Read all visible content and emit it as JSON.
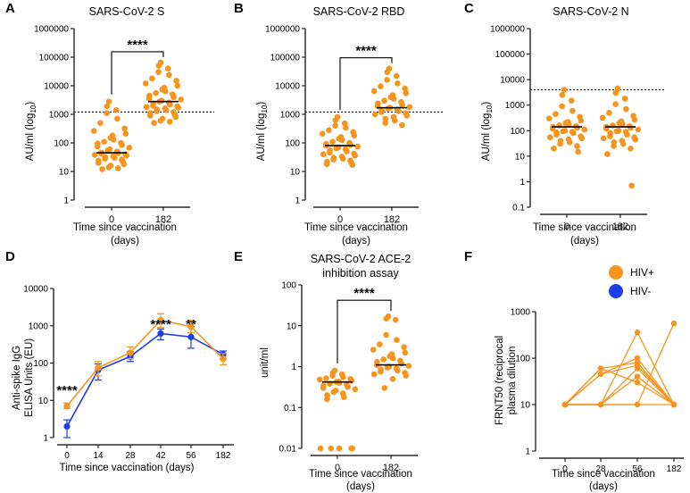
{
  "colors": {
    "hiv_pos": "#F7941D",
    "hiv_neg": "#1E3FE6",
    "axis": "#000000"
  },
  "chart_data": [
    {
      "panel": "A",
      "type": "scatter",
      "title": "SARS-CoV-2 S",
      "ylabel": "AU/ml (log10)",
      "xlabel": "Time since vaccination",
      "xlabel2": "(days)",
      "yscale": "log",
      "ylim": [
        1,
        1000000
      ],
      "yticks": [
        "1",
        "10",
        "100",
        "1000",
        "10000",
        "100000",
        "1000000"
      ],
      "categories": [
        "0",
        "182"
      ],
      "medians": [
        45,
        2800
      ],
      "threshold": 1200,
      "significance": "****",
      "series": [
        {
          "values": [
            2800,
            1900,
            1400,
            1100,
            700,
            500,
            320,
            260,
            210,
            180,
            150,
            130,
            110,
            100,
            95,
            85,
            75,
            68,
            60,
            55,
            50,
            46,
            44,
            42,
            40,
            38,
            36,
            34,
            32,
            30,
            28,
            26,
            24,
            22,
            20,
            18,
            16,
            14,
            13,
            12
          ]
        },
        {
          "values": [
            65000,
            50000,
            40000,
            30000,
            24000,
            18000,
            15000,
            12000,
            10000,
            8500,
            7500,
            6500,
            5600,
            5000,
            4500,
            4000,
            3600,
            3300,
            3000,
            2800,
            2600,
            2400,
            2200,
            2000,
            1900,
            1800,
            1700,
            1600,
            1500,
            1400,
            1300,
            1200,
            1100,
            1000,
            900,
            800,
            700,
            600,
            550,
            500
          ]
        }
      ]
    },
    {
      "panel": "B",
      "type": "scatter",
      "title": "SARS-CoV-2 RBD",
      "ylabel": "AU/ml (log10)",
      "xlabel": "Time since vaccination",
      "xlabel2": "(days)",
      "yscale": "log",
      "ylim": [
        1,
        1000000
      ],
      "yticks": [
        "1",
        "10",
        "100",
        "1000",
        "10000",
        "100000",
        "1000000"
      ],
      "categories": [
        "0",
        "182"
      ],
      "medians": [
        80,
        1700
      ],
      "threshold": 1200,
      "significance": "****",
      "series": [
        {
          "values": [
            800,
            620,
            480,
            400,
            340,
            280,
            240,
            210,
            180,
            160,
            140,
            125,
            110,
            100,
            92,
            85,
            80,
            75,
            70,
            65,
            60,
            55,
            50,
            46,
            42,
            40,
            36,
            33,
            30,
            28,
            26,
            24,
            22,
            20,
            18,
            17
          ]
        },
        {
          "values": [
            40000,
            30000,
            22000,
            16000,
            12000,
            9500,
            8000,
            6500,
            5500,
            4700,
            4000,
            3500,
            3000,
            2700,
            2400,
            2100,
            1900,
            1800,
            1700,
            1600,
            1500,
            1400,
            1300,
            1200,
            1100,
            1000,
            900,
            800,
            700,
            600,
            500,
            420
          ]
        }
      ]
    },
    {
      "panel": "C",
      "type": "scatter",
      "title": "SARS-CoV-2 N",
      "ylabel": "AU/ml (log10)",
      "xlabel": "Time since vaccination",
      "xlabel2": "(days)",
      "yscale": "log",
      "ylim": [
        0.1,
        1000000
      ],
      "yticks": [
        "0.1",
        "1",
        "10",
        "100",
        "1000",
        "10000",
        "100000",
        "1000000"
      ],
      "categories": [
        "0",
        "182"
      ],
      "medians": [
        140,
        140
      ],
      "threshold": 4000,
      "series": [
        {
          "values": [
            4000,
            2500,
            1500,
            900,
            600,
            450,
            350,
            300,
            250,
            220,
            200,
            180,
            160,
            150,
            140,
            130,
            120,
            110,
            100,
            95,
            90,
            85,
            80,
            70,
            60,
            55,
            50,
            45,
            40,
            35,
            30,
            25,
            20,
            15
          ]
        },
        {
          "values": [
            4500,
            3000,
            1800,
            1100,
            700,
            500,
            380,
            320,
            270,
            230,
            200,
            180,
            160,
            150,
            140,
            130,
            120,
            110,
            100,
            95,
            90,
            80,
            70,
            60,
            55,
            50,
            45,
            40,
            35,
            30,
            25,
            20,
            12,
            0.7
          ]
        }
      ]
    },
    {
      "panel": "D",
      "type": "line",
      "ylabel": "Anti-spike IgG",
      "ylabel2": "ELISA Units (EU)",
      "xlabel": "Time since vaccination (days)",
      "yscale": "log",
      "ylim": [
        1,
        10000
      ],
      "yticks": [
        "1",
        "10",
        "100",
        "1000",
        "10000"
      ],
      "x": [
        "0",
        "14",
        "28",
        "42",
        "56",
        "182"
      ],
      "series": [
        {
          "name": "HIV+",
          "values": [
            7,
            75,
            190,
            1400,
            950,
            130
          ],
          "lower": [
            6,
            45,
            130,
            900,
            650,
            90
          ],
          "upper": [
            8.5,
            110,
            270,
            2100,
            1400,
            180
          ]
        },
        {
          "name": "HIV-",
          "values": [
            2,
            65,
            150,
            620,
            500,
            170
          ],
          "lower": [
            1,
            35,
            110,
            420,
            250,
            130
          ],
          "upper": [
            3,
            95,
            200,
            820,
            950,
            210
          ]
        }
      ],
      "significance": [
        {
          "x": "0",
          "label": "****"
        },
        {
          "x": "42",
          "label": "****"
        },
        {
          "x": "56",
          "label": "**"
        }
      ]
    },
    {
      "panel": "E",
      "type": "scatter",
      "title": "SARS-CoV-2 ACE-2",
      "title2": "inhibition assay",
      "ylabel": "unit/ml",
      "xlabel": "Time since vaccination",
      "xlabel2": "(days)",
      "yscale": "log",
      "ylim": [
        0.01,
        100
      ],
      "yticks": [
        "0.01",
        "0.1",
        "1",
        "10",
        "100"
      ],
      "categories": [
        "0",
        "182"
      ],
      "medians": [
        0.42,
        1.1
      ],
      "significance": "****",
      "series": [
        {
          "values": [
            0.8,
            0.7,
            0.65,
            0.6,
            0.55,
            0.52,
            0.5,
            0.48,
            0.45,
            0.43,
            0.42,
            0.4,
            0.38,
            0.36,
            0.34,
            0.32,
            0.3,
            0.28,
            0.26,
            0.24,
            0.22,
            0.2,
            0.18,
            0.16,
            0.01,
            0.01,
            0.01,
            0.01,
            0.01
          ]
        },
        {
          "values": [
            17,
            15,
            14,
            6,
            4.5,
            3.5,
            3,
            2.6,
            2.2,
            2,
            1.8,
            1.6,
            1.5,
            1.4,
            1.3,
            1.2,
            1.1,
            1.05,
            1,
            0.95,
            0.9,
            0.85,
            0.8,
            0.75,
            0.7,
            0.65,
            0.6,
            0.5,
            0.3
          ]
        }
      ]
    },
    {
      "panel": "F",
      "type": "line",
      "ylabel": "FRNT50 (reciprocal",
      "ylabel2": "plasma dilution",
      "xlabel": "Time since vaccination",
      "xlabel2": "(days)",
      "yscale": "log",
      "ylim": [
        1,
        1000
      ],
      "yticks": [
        "1",
        "10",
        "100",
        "1000"
      ],
      "x": [
        "0",
        "28",
        "56",
        "182"
      ],
      "series": [
        {
          "values": [
            10,
            60,
            80,
            10
          ]
        },
        {
          "values": [
            10,
            45,
            100,
            10
          ]
        },
        {
          "values": [
            10,
            10,
            60,
            10
          ]
        },
        {
          "values": [
            10,
            10,
            40,
            10
          ]
        },
        {
          "values": [
            10,
            10,
            360,
            10
          ]
        },
        {
          "values": [
            10,
            60,
            30,
            10
          ]
        },
        {
          "values": [
            10,
            10,
            10,
            10
          ]
        },
        {
          "values": [
            10,
            10,
            10,
            560
          ]
        },
        {
          "values": [
            10,
            45,
            70,
            10
          ]
        }
      ]
    }
  ],
  "legend": [
    {
      "label": "HIV+",
      "color": "#F7941D"
    },
    {
      "label": "HIV-",
      "color": "#1E3FE6"
    }
  ]
}
